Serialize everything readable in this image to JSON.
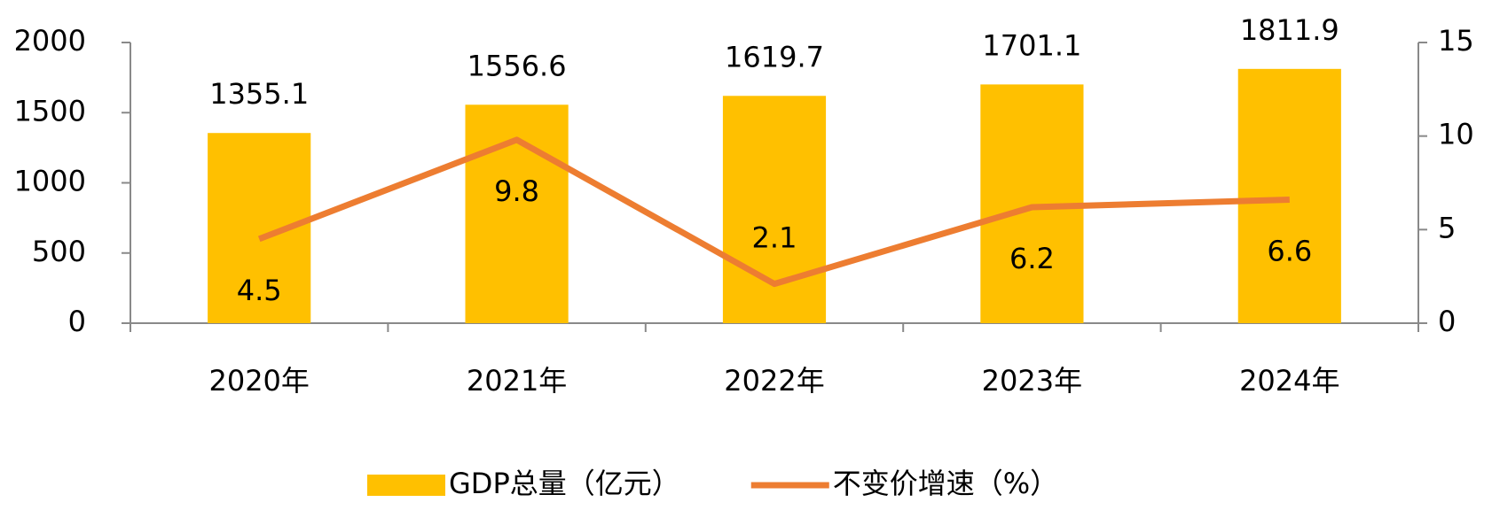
{
  "chart_data": {
    "type": "bar",
    "categories": [
      "2020年",
      "2021年",
      "2022年",
      "2023年",
      "2024年"
    ],
    "series": [
      {
        "name": "GDP总量（亿元）",
        "type": "bar",
        "color": "#ffc000",
        "values": [
          1355.1,
          1556.6,
          1619.7,
          1701.1,
          1811.9
        ]
      },
      {
        "name": "不变价增速（%）",
        "type": "line",
        "axis": "y2",
        "color": "#ed7d31",
        "values": [
          4.5,
          9.8,
          2.1,
          6.2,
          6.6
        ]
      }
    ],
    "ylim": [
      0,
      2000
    ],
    "yticks": [
      0,
      500,
      1000,
      1500,
      2000
    ],
    "y2lim": [
      0,
      15
    ],
    "y2ticks": [
      0,
      5,
      10,
      15
    ],
    "grid": false,
    "legend": "bottom"
  }
}
